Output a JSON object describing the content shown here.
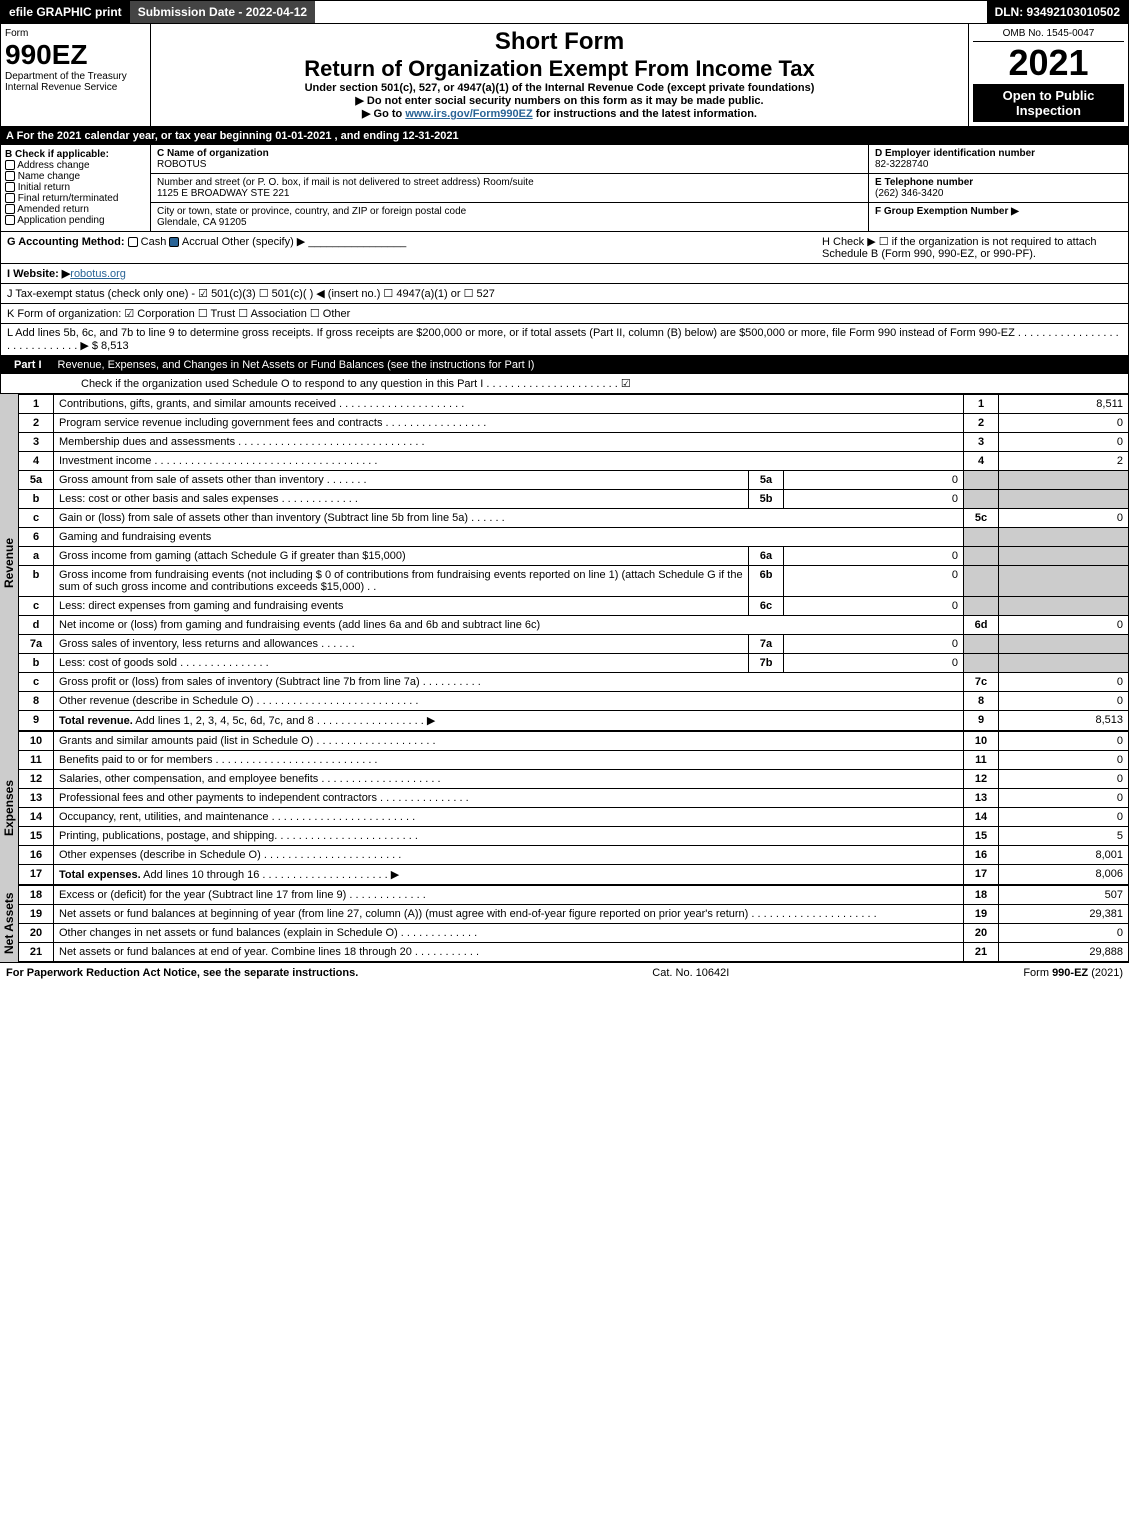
{
  "topbar": {
    "efile": "efile GRAPHIC print",
    "subdate": "Submission Date - 2022-04-12",
    "dln": "DLN: 93492103010502"
  },
  "header": {
    "form": "Form",
    "formno": "990EZ",
    "dept": "Department of the Treasury",
    "irs": "Internal Revenue Service",
    "short": "Short Form",
    "title": "Return of Organization Exempt From Income Tax",
    "sub": "Under section 501(c), 527, or 4947(a)(1) of the Internal Revenue Code (except private foundations)",
    "note1": "▶ Do not enter social security numbers on this form as it may be made public.",
    "note2": "▶ Go to www.irs.gov/Form990EZ for instructions and the latest information.",
    "omb": "OMB No. 1545-0047",
    "year": "2021",
    "open": "Open to Public Inspection"
  },
  "sectA": "A  For the 2021 calendar year, or tax year beginning 01-01-2021 , and ending 12-31-2021",
  "B": {
    "label": "B  Check if applicable:",
    "opts": [
      "Address change",
      "Name change",
      "Initial return",
      "Final return/terminated",
      "Amended return",
      "Application pending"
    ]
  },
  "C": {
    "namelbl": "C Name of organization",
    "name": "ROBOTUS",
    "addrlbl": "Number and street (or P. O. box, if mail is not delivered to street address)    Room/suite",
    "addr": "1125 E BROADWAY STE 221",
    "citylbl": "City or town, state or province, country, and ZIP or foreign postal code",
    "city": "Glendale, CA  91205"
  },
  "D": {
    "lbl": "D Employer identification number",
    "val": "82-3228740"
  },
  "E": {
    "lbl": "E Telephone number",
    "val": "(262) 346-3420"
  },
  "F": {
    "lbl": "F Group Exemption Number  ▶",
    "val": ""
  },
  "G": {
    "lbl": "G Accounting Method:",
    "cash": "Cash",
    "accrual": "Accrual",
    "other": "Other (specify) ▶"
  },
  "H": {
    "lbl": "H  Check ▶ ☐ if the organization is not required to attach Schedule B (Form 990, 990-EZ, or 990-PF)."
  },
  "I": {
    "lbl": "I Website: ▶",
    "val": "robotus.org"
  },
  "J": {
    "lbl": "J Tax-exempt status (check only one) - ☑ 501(c)(3) ☐ 501(c)(  ) ◀ (insert no.) ☐ 4947(a)(1) or ☐ 527"
  },
  "K": {
    "lbl": "K Form of organization:  ☑ Corporation  ☐ Trust  ☐ Association  ☐ Other"
  },
  "L": {
    "lbl": "L Add lines 5b, 6c, and 7b to line 9 to determine gross receipts. If gross receipts are $200,000 or more, or if total assets (Part II, column (B) below) are $500,000 or more, file Form 990 instead of Form 990-EZ . . . . . . . . . . . . . . . . . . . . . . . . . . . . . ▶ $ 8,513"
  },
  "partI": {
    "title": "Part I",
    "desc": "Revenue, Expenses, and Changes in Net Assets or Fund Balances (see the instructions for Part I)",
    "check": "Check if the organization used Schedule O to respond to any question in this Part I . . . . . . . . . . . . . . . . . . . . . . ☑"
  },
  "sections": {
    "revenue": "Revenue",
    "expenses": "Expenses",
    "netassets": "Net Assets"
  },
  "lines": [
    {
      "n": "1",
      "t": "Contributions, gifts, grants, and similar amounts received . . . . . . . . . . . . . . . . . . . . .",
      "r": "1",
      "v": "8,511"
    },
    {
      "n": "2",
      "t": "Program service revenue including government fees and contracts . . . . . . . . . . . . . . . . .",
      "r": "2",
      "v": "0"
    },
    {
      "n": "3",
      "t": "Membership dues and assessments . . . . . . . . . . . . . . . . . . . . . . . . . . . . . . .",
      "r": "3",
      "v": "0"
    },
    {
      "n": "4",
      "t": "Investment income . . . . . . . . . . . . . . . . . . . . . . . . . . . . . . . . . . . . .",
      "r": "4",
      "v": "2"
    },
    {
      "n": "5a",
      "t": "Gross amount from sale of assets other than inventory . . . . . . .",
      "ir": "5a",
      "iv": "0"
    },
    {
      "n": "b",
      "t": "Less: cost or other basis and sales expenses . . . . . . . . . . . . .",
      "ir": "5b",
      "iv": "0"
    },
    {
      "n": "c",
      "t": "Gain or (loss) from sale of assets other than inventory (Subtract line 5b from line 5a) . . . . . .",
      "r": "5c",
      "v": "0"
    },
    {
      "n": "6",
      "t": "Gaming and fundraising events"
    },
    {
      "n": "a",
      "t": "Gross income from gaming (attach Schedule G if greater than $15,000)",
      "ir": "6a",
      "iv": "0"
    },
    {
      "n": "b",
      "t": "Gross income from fundraising events (not including $ 0  of contributions from fundraising events reported on line 1) (attach Schedule G if the sum of such gross income and contributions exceeds $15,000)   .  .",
      "ir": "6b",
      "iv": "0"
    },
    {
      "n": "c",
      "t": "Less: direct expenses from gaming and fundraising events",
      "ir": "6c",
      "iv": "0"
    },
    {
      "n": "d",
      "t": "Net income or (loss) from gaming and fundraising events (add lines 6a and 6b and subtract line 6c)",
      "r": "6d",
      "v": "0"
    },
    {
      "n": "7a",
      "t": "Gross sales of inventory, less returns and allowances . . . . . .",
      "ir": "7a",
      "iv": "0"
    },
    {
      "n": "b",
      "t": "Less: cost of goods sold       . . . . . . . . . . . . . . .",
      "ir": "7b",
      "iv": "0"
    },
    {
      "n": "c",
      "t": "Gross profit or (loss) from sales of inventory (Subtract line 7b from line 7a) . . . . . . . . . .",
      "r": "7c",
      "v": "0"
    },
    {
      "n": "8",
      "t": "Other revenue (describe in Schedule O) . . . . . . . . . . . . . . . . . . . . . . . . . . .",
      "r": "8",
      "v": "0"
    },
    {
      "n": "9",
      "t": "Total revenue. Add lines 1, 2, 3, 4, 5c, 6d, 7c, and 8  . . . . . . . . . . . . . . . . . .   ▶",
      "r": "9",
      "v": "8,513",
      "bold": true
    }
  ],
  "explines": [
    {
      "n": "10",
      "t": "Grants and similar amounts paid (list in Schedule O) . . . . . . . . . . . . . . . . . . . .",
      "r": "10",
      "v": "0"
    },
    {
      "n": "11",
      "t": "Benefits paid to or for members    . . . . . . . . . . . . . . . . . . . . . . . . . . .",
      "r": "11",
      "v": "0"
    },
    {
      "n": "12",
      "t": "Salaries, other compensation, and employee benefits . . . . . . . . . . . . . . . . . . . .",
      "r": "12",
      "v": "0"
    },
    {
      "n": "13",
      "t": "Professional fees and other payments to independent contractors . . . . . . . . . . . . . . .",
      "r": "13",
      "v": "0"
    },
    {
      "n": "14",
      "t": "Occupancy, rent, utilities, and maintenance . . . . . . . . . . . . . . . . . . . . . . . .",
      "r": "14",
      "v": "0"
    },
    {
      "n": "15",
      "t": "Printing, publications, postage, and shipping. . . . . . . . . . . . . . . . . . . . . . . .",
      "r": "15",
      "v": "5"
    },
    {
      "n": "16",
      "t": "Other expenses (describe in Schedule O)    . . . . . . . . . . . . . . . . . . . . . . .",
      "r": "16",
      "v": "8,001"
    },
    {
      "n": "17",
      "t": "Total expenses. Add lines 10 through 16    . . . . . . . . . . . . . . . . . . . . .   ▶",
      "r": "17",
      "v": "8,006",
      "bold": true
    }
  ],
  "netlines": [
    {
      "n": "18",
      "t": "Excess or (deficit) for the year (Subtract line 17 from line 9)       . . . . . . . . . . . . .",
      "r": "18",
      "v": "507"
    },
    {
      "n": "19",
      "t": "Net assets or fund balances at beginning of year (from line 27, column (A)) (must agree with end-of-year figure reported on prior year's return) . . . . . . . . . . . . . . . . . . . . .",
      "r": "19",
      "v": "29,381"
    },
    {
      "n": "20",
      "t": "Other changes in net assets or fund balances (explain in Schedule O) . . . . . . . . . . . . .",
      "r": "20",
      "v": "0"
    },
    {
      "n": "21",
      "t": "Net assets or fund balances at end of year. Combine lines 18 through 20 . . . . . . . . . . .",
      "r": "21",
      "v": "29,888"
    }
  ],
  "footer": {
    "l": "For Paperwork Reduction Act Notice, see the separate instructions.",
    "c": "Cat. No. 10642I",
    "r": "Form 990-EZ (2021)"
  }
}
